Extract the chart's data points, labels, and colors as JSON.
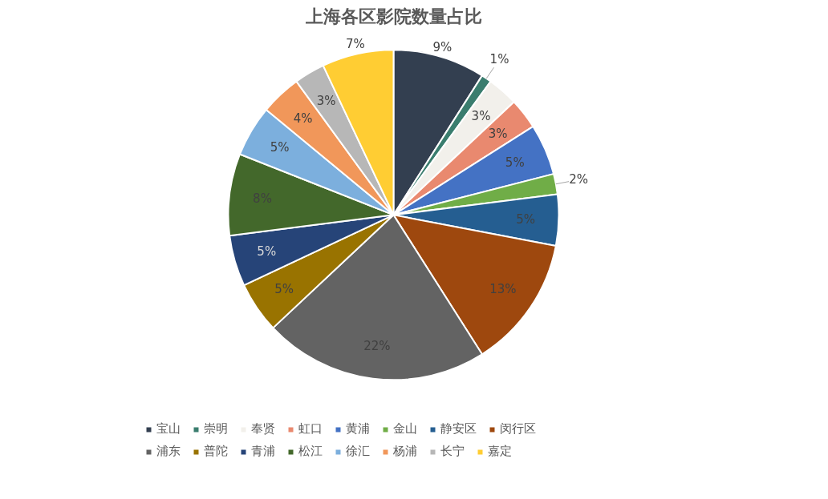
{
  "chart_data": {
    "type": "pie",
    "title": "上海各区影院数量占比",
    "categories": [
      "宝山",
      "崇明",
      "奉贤",
      "虹口",
      "黄浦",
      "金山",
      "静安区",
      "闵行区",
      "浦东",
      "普陀",
      "青浦",
      "松江",
      "徐汇",
      "杨浦",
      "长宁",
      "嘉定"
    ],
    "values": [
      9,
      1,
      3,
      3,
      5,
      2,
      5,
      13,
      22,
      5,
      5,
      8,
      5,
      4,
      3,
      7
    ],
    "value_labels": [
      "9%",
      "1%",
      "3%",
      "3%",
      "5%",
      "2%",
      "5%",
      "13%",
      "22%",
      "5%",
      "5%",
      "8%",
      "5%",
      "4%",
      "3%",
      "7%"
    ],
    "colors": [
      "#333f50",
      "#3a7d6e",
      "#f2f0eb",
      "#e9896f",
      "#4472c4",
      "#70ad47",
      "#255e91",
      "#9e480e",
      "#636363",
      "#997300",
      "#264478",
      "#43682b",
      "#7cafdd",
      "#f1975a",
      "#b7b7b7",
      "#ffcd33"
    ],
    "legend": "bottom"
  }
}
